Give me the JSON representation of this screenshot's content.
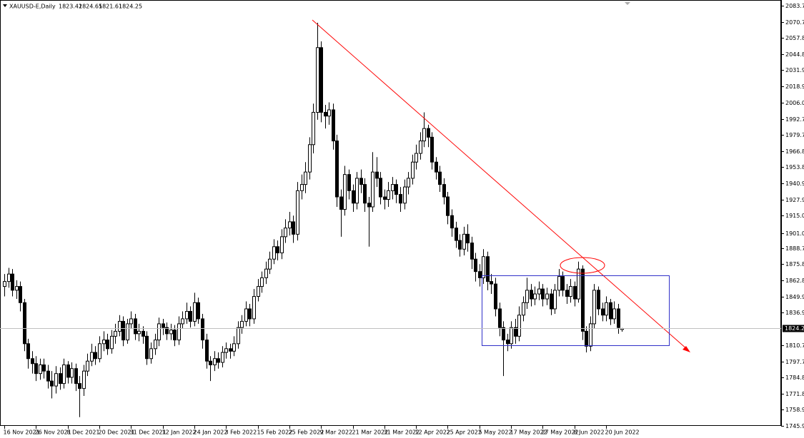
{
  "chart_data": {
    "type": "candlestick",
    "title": "XAUUSD-E,Daily",
    "categories": [
      "16 Nov 2021",
      null,
      null,
      null,
      null,
      null,
      null,
      null,
      "26 Nov 2021",
      null,
      null,
      null,
      null,
      null,
      null,
      null,
      "8 Dec 2021",
      null,
      null,
      null,
      null,
      null,
      null,
      null,
      "20 Dec 2021",
      null,
      null,
      null,
      null,
      null,
      null,
      null,
      "31 Dec 2021",
      null,
      null,
      null,
      null,
      null,
      null,
      null,
      "12 Jan 2022",
      null,
      null,
      null,
      null,
      null,
      null,
      null,
      "24 Jan 2022",
      null,
      null,
      null,
      null,
      null,
      null,
      null,
      "3 Feb 2022",
      null,
      null,
      null,
      null,
      null,
      null,
      null,
      "15 Feb 2022",
      null,
      null,
      null,
      null,
      null,
      null,
      null,
      "25 Feb 2022",
      null,
      null,
      null,
      null,
      null,
      null,
      null,
      "9 Mar 2022",
      null,
      null,
      null,
      null,
      null,
      null,
      null,
      "21 Mar 2022",
      null,
      null,
      null,
      null,
      null,
      null,
      null,
      "31 Mar 2022",
      null,
      null,
      null,
      null,
      null,
      null,
      null,
      "12 Apr 2022",
      null,
      null,
      null,
      null,
      null,
      null,
      null,
      "25 Apr 2022",
      null,
      null,
      null,
      null,
      null,
      null,
      null,
      "5 May 2022",
      null,
      null,
      null,
      null,
      null,
      null,
      null,
      "17 May 2022",
      null,
      null,
      null,
      null,
      null,
      null,
      null,
      "27 May 2022",
      null,
      null,
      null,
      null,
      null,
      null,
      null,
      "8 Jun 2022",
      null,
      null,
      null,
      null,
      null,
      null,
      null,
      "20 Jun 2022",
      null,
      null,
      null,
      null
    ],
    "open": [
      1858,
      1862,
      1868,
      1855,
      1858,
      1845,
      1812,
      1800,
      1796,
      1788,
      1795,
      1790,
      1782,
      1778,
      1788,
      1780,
      1795,
      1785,
      1792,
      1780,
      1776,
      1790,
      1798,
      1805,
      1800,
      1812,
      1815,
      1808,
      1818,
      1822,
      1830,
      1815,
      1828,
      1832,
      1820,
      1822,
      1818,
      1800,
      1808,
      1815,
      1828,
      1825,
      1820,
      1823,
      1815,
      1828,
      1832,
      1838,
      1830,
      1845,
      1832,
      1815,
      1798,
      1795,
      1800,
      1797,
      1805,
      1808,
      1806,
      1812,
      1825,
      1830,
      1840,
      1832,
      1850,
      1858,
      1865,
      1872,
      1880,
      1890,
      1885,
      1898,
      1905,
      1910,
      1900,
      1935,
      1940,
      1950,
      1972,
      1998,
      2050,
      1998,
      1995,
      2000,
      1975,
      1930,
      1920,
      1948,
      1935,
      1925,
      1945,
      1940,
      1925,
      1922,
      1950,
      1945,
      1930,
      1928,
      1935,
      1940,
      1932,
      1925,
      1938,
      1945,
      1958,
      1965,
      1975,
      1985,
      1978,
      1958,
      1950,
      1940,
      1930,
      1915,
      1905,
      1895,
      1888,
      1900,
      1893,
      1880,
      1870,
      1865,
      1882,
      1862,
      1860,
      1840,
      1825,
      1815,
      1812,
      1825,
      1818,
      1835,
      1845,
      1855,
      1848,
      1852,
      1856,
      1848,
      1852,
      1840,
      1855,
      1866,
      1855,
      1850,
      1858,
      1848,
      1872,
      1822,
      1810,
      1828,
      1855,
      1840,
      1835,
      1845,
      1832,
      1840,
      1823.42
    ],
    "high": [
      1868,
      1873,
      1872,
      1863,
      1862,
      1848,
      1816,
      1806,
      1802,
      1800,
      1800,
      1795,
      1790,
      1794,
      1793,
      1800,
      1798,
      1797,
      1796,
      1786,
      1795,
      1804,
      1812,
      1810,
      1818,
      1822,
      1820,
      1823,
      1828,
      1835,
      1834,
      1832,
      1838,
      1836,
      1828,
      1826,
      1822,
      1813,
      1820,
      1833,
      1832,
      1829,
      1828,
      1827,
      1834,
      1838,
      1845,
      1842,
      1853,
      1849,
      1836,
      1820,
      1802,
      1806,
      1805,
      1810,
      1813,
      1812,
      1818,
      1830,
      1835,
      1846,
      1844,
      1856,
      1864,
      1870,
      1878,
      1886,
      1896,
      1895,
      1904,
      1912,
      1918,
      1915,
      1942,
      1948,
      1958,
      1978,
      2005,
      2070,
      2055,
      2004,
      2006,
      2005,
      1980,
      1936,
      1955,
      1952,
      1940,
      1950,
      1952,
      1945,
      1930,
      1966,
      1962,
      1950,
      1936,
      1942,
      1946,
      1944,
      1938,
      1944,
      1950,
      1964,
      1972,
      1982,
      1998,
      1988,
      1982,
      1962,
      1955,
      1945,
      1934,
      1920,
      1910,
      1900,
      1906,
      1908,
      1898,
      1885,
      1876,
      1888,
      1886,
      1868,
      1865,
      1845,
      1830,
      1820,
      1830,
      1832,
      1842,
      1850,
      1865,
      1860,
      1858,
      1862,
      1860,
      1857,
      1856,
      1860,
      1872,
      1870,
      1860,
      1864,
      1862,
      1878,
      1875,
      1826,
      1834,
      1860,
      1858,
      1845,
      1850,
      1848,
      1846,
      1844,
      1824.65
    ],
    "low": [
      1850,
      1857,
      1850,
      1848,
      1838,
      1806,
      1792,
      1788,
      1782,
      1783,
      1784,
      1776,
      1768,
      1772,
      1775,
      1776,
      1780,
      1780,
      1774,
      1753,
      1770,
      1786,
      1794,
      1795,
      1797,
      1806,
      1803,
      1804,
      1812,
      1818,
      1810,
      1812,
      1824,
      1815,
      1814,
      1812,
      1795,
      1796,
      1803,
      1810,
      1819,
      1815,
      1815,
      1810,
      1811,
      1824,
      1828,
      1825,
      1826,
      1828,
      1808,
      1792,
      1782,
      1790,
      1792,
      1793,
      1800,
      1800,
      1802,
      1808,
      1820,
      1826,
      1826,
      1828,
      1846,
      1853,
      1860,
      1868,
      1876,
      1879,
      1880,
      1893,
      1899,
      1893,
      1895,
      1928,
      1933,
      1944,
      1965,
      1992,
      1990,
      1985,
      1988,
      1968,
      1922,
      1898,
      1915,
      1928,
      1918,
      1920,
      1933,
      1918,
      1890,
      1918,
      1938,
      1924,
      1920,
      1922,
      1928,
      1925,
      1918,
      1920,
      1932,
      1940,
      1952,
      1960,
      1970,
      1970,
      1952,
      1944,
      1934,
      1924,
      1908,
      1898,
      1889,
      1882,
      1883,
      1886,
      1872,
      1862,
      1858,
      1860,
      1855,
      1852,
      1834,
      1818,
      1786,
      1806,
      1808,
      1812,
      1814,
      1830,
      1840,
      1842,
      1843,
      1847,
      1842,
      1843,
      1835,
      1836,
      1850,
      1850,
      1844,
      1845,
      1842,
      1845,
      1815,
      1805,
      1806,
      1824,
      1835,
      1830,
      1830,
      1827,
      1828,
      1820,
      1821.61
    ],
    "close": [
      1862,
      1868,
      1855,
      1858,
      1845,
      1812,
      1800,
      1796,
      1788,
      1795,
      1790,
      1782,
      1778,
      1788,
      1780,
      1795,
      1785,
      1792,
      1780,
      1776,
      1790,
      1798,
      1805,
      1800,
      1812,
      1815,
      1808,
      1818,
      1822,
      1830,
      1815,
      1828,
      1832,
      1820,
      1822,
      1818,
      1800,
      1808,
      1815,
      1828,
      1825,
      1820,
      1823,
      1815,
      1828,
      1832,
      1838,
      1830,
      1845,
      1832,
      1815,
      1798,
      1795,
      1800,
      1797,
      1805,
      1808,
      1806,
      1812,
      1825,
      1830,
      1840,
      1832,
      1850,
      1858,
      1865,
      1872,
      1880,
      1890,
      1885,
      1898,
      1905,
      1910,
      1900,
      1935,
      1940,
      1950,
      1972,
      1998,
      2050,
      1998,
      1995,
      2000,
      1975,
      1930,
      1920,
      1948,
      1935,
      1925,
      1945,
      1940,
      1925,
      1922,
      1950,
      1945,
      1930,
      1928,
      1935,
      1940,
      1932,
      1925,
      1938,
      1945,
      1958,
      1965,
      1975,
      1985,
      1978,
      1958,
      1950,
      1940,
      1930,
      1915,
      1905,
      1895,
      1888,
      1900,
      1893,
      1880,
      1870,
      1865,
      1882,
      1862,
      1860,
      1840,
      1825,
      1815,
      1812,
      1825,
      1818,
      1835,
      1845,
      1855,
      1848,
      1852,
      1856,
      1848,
      1852,
      1840,
      1855,
      1866,
      1855,
      1850,
      1858,
      1848,
      1872,
      1822,
      1810,
      1828,
      1855,
      1840,
      1835,
      1845,
      1832,
      1840,
      1825,
      1824.25
    ],
    "ylim": [
      1745.95,
      2083.7
    ],
    "yticks": [
      {
        "value": 2083.7,
        "label": "2083.70"
      },
      {
        "value": 2070.75,
        "label": "2070.75"
      },
      {
        "value": 2057.8,
        "label": "2057.80"
      },
      {
        "value": 2044.85,
        "label": "2044.85"
      },
      {
        "value": 2031.9,
        "label": "2031.90"
      },
      {
        "value": 2018.95,
        "label": "2018.95"
      },
      {
        "value": 2006,
        "label": "2006.00"
      },
      {
        "value": 1992.7,
        "label": "1992.70"
      },
      {
        "value": 1979.75,
        "label": "1979.75"
      },
      {
        "value": 1966.8,
        "label": "1966.80"
      },
      {
        "value": 1953.85,
        "label": "1953.85"
      },
      {
        "value": 1940.9,
        "label": "1940.90"
      },
      {
        "value": 1927.95,
        "label": "1927.95"
      },
      {
        "value": 1915,
        "label": "1915.00"
      },
      {
        "value": 1901,
        "label": "1901.00"
      },
      {
        "value": 1888.75,
        "label": "1888.75"
      },
      {
        "value": 1875.85,
        "label": "1875.85"
      },
      {
        "value": 1862.85,
        "label": "1862.85"
      },
      {
        "value": 1849.95,
        "label": "1849.95"
      },
      {
        "value": 1836.95,
        "label": "1836.95"
      },
      {
        "value": 1810.7,
        "label": "1810.70"
      },
      {
        "value": 1797.75,
        "label": "1797.75"
      },
      {
        "value": 1784.8,
        "label": "1784.80"
      },
      {
        "value": 1771.85,
        "label": "1771.85"
      },
      {
        "value": 1758.9,
        "label": "1758.90"
      },
      {
        "value": 1745.95,
        "label": "1745.95"
      }
    ],
    "grid": false
  }
}
